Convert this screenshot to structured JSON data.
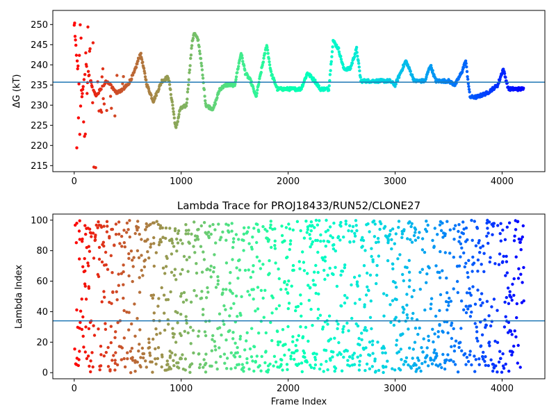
{
  "chart_data": [
    {
      "type": "scatter",
      "title": "",
      "xlabel": "",
      "ylabel": "ΔG (kT)",
      "xlim": [
        -200,
        4400
      ],
      "ylim": [
        213.5,
        253.5
      ],
      "xticks": [
        0,
        1000,
        2000,
        3000,
        4000
      ],
      "yticks": [
        215,
        220,
        225,
        230,
        235,
        240,
        245,
        250
      ],
      "hline": 235.7,
      "colormap": "rainbow-reversed (red at frame 0, violet at last frame)",
      "frame_range": [
        0,
        4200
      ],
      "trace_segments": [
        [
          0,
          250
        ],
        [
          60,
          230
        ],
        [
          110,
          240
        ],
        [
          200,
          232
        ],
        [
          300,
          236
        ],
        [
          400,
          233
        ],
        [
          500,
          235
        ],
        [
          560,
          238
        ],
        [
          620,
          243
        ],
        [
          680,
          235
        ],
        [
          740,
          231
        ],
        [
          820,
          236
        ],
        [
          880,
          237
        ],
        [
          920,
          230
        ],
        [
          950,
          224
        ],
        [
          990,
          229
        ],
        [
          1050,
          230
        ],
        [
          1100,
          245
        ],
        [
          1120,
          248
        ],
        [
          1160,
          246
        ],
        [
          1190,
          240
        ],
        [
          1230,
          230
        ],
        [
          1300,
          229
        ],
        [
          1360,
          234
        ],
        [
          1420,
          235
        ],
        [
          1500,
          235
        ],
        [
          1560,
          243
        ],
        [
          1600,
          238
        ],
        [
          1650,
          236
        ],
        [
          1700,
          232
        ],
        [
          1760,
          240
        ],
        [
          1800,
          245
        ],
        [
          1840,
          238
        ],
        [
          1900,
          234
        ],
        [
          2000,
          234
        ],
        [
          2080,
          234
        ],
        [
          2120,
          234
        ],
        [
          2180,
          238
        ],
        [
          2250,
          236
        ],
        [
          2300,
          234
        ],
        [
          2380,
          234
        ],
        [
          2420,
          246
        ],
        [
          2470,
          244
        ],
        [
          2520,
          239
        ],
        [
          2580,
          239
        ],
        [
          2640,
          244
        ],
        [
          2680,
          236
        ],
        [
          2800,
          236
        ],
        [
          2950,
          236
        ],
        [
          3000,
          235
        ],
        [
          3100,
          241
        ],
        [
          3180,
          236
        ],
        [
          3280,
          236
        ],
        [
          3330,
          240
        ],
        [
          3380,
          236
        ],
        [
          3500,
          236
        ],
        [
          3560,
          235
        ],
        [
          3620,
          238
        ],
        [
          3660,
          241
        ],
        [
          3700,
          232
        ],
        [
          3760,
          232
        ],
        [
          3860,
          233
        ],
        [
          3960,
          235
        ],
        [
          4010,
          239
        ],
        [
          4060,
          234
        ],
        [
          4200,
          234
        ]
      ],
      "early_scatter_levels": [
        215,
        217,
        220,
        223,
        226,
        230,
        233,
        236,
        240,
        243,
        246,
        250
      ]
    },
    {
      "type": "scatter",
      "title": "Lambda Trace for PROJ18433/RUN52/CLONE27",
      "xlabel": "Frame Index",
      "ylabel": "Lambda Index",
      "xlim": [
        -200,
        4400
      ],
      "ylim": [
        -4,
        104
      ],
      "xticks": [
        0,
        1000,
        2000,
        3000,
        4000
      ],
      "yticks": [
        0,
        20,
        40,
        60,
        80,
        100
      ],
      "hline": 34,
      "colormap": "rainbow-reversed (red at frame 0, violet at last frame)",
      "frame_range": [
        0,
        4200
      ]
    }
  ]
}
